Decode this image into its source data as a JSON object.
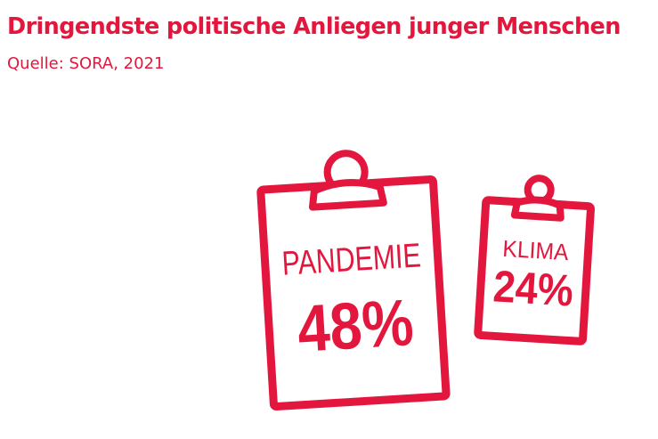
{
  "title": "Dringendste politische Anliegen junger Menschen",
  "source": "Quelle: SORA, 2021",
  "accent_color": "#e3173e",
  "chart_data": {
    "type": "pictogram",
    "title": "Dringendste politische Anliegen junger Menschen",
    "subtitle": "Quelle: SORA, 2021",
    "categories": [
      "PANDEMIE",
      "KLIMA"
    ],
    "values": [
      48,
      24
    ],
    "value_labels": [
      "48%",
      "24%"
    ],
    "unit": "%"
  }
}
